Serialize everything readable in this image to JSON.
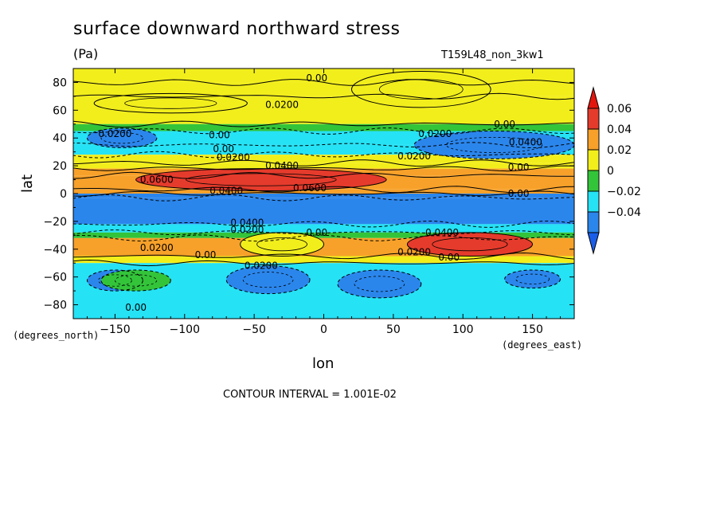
{
  "chart_data": {
    "type": "heatmap",
    "title": "surface downward northward stress",
    "units": "(Pa)",
    "run_id": "T159L48_non_3kw1",
    "xlabel": "lon",
    "ylabel": "lat",
    "x_unit_label": "(degrees_east)",
    "y_unit_label": "(degrees_north)",
    "xlim": [
      -180,
      180
    ],
    "ylim": [
      -90,
      90
    ],
    "xticks": [
      -150,
      -100,
      -50,
      0,
      50,
      100,
      150
    ],
    "yticks": [
      -80,
      -60,
      -40,
      -20,
      0,
      20,
      40,
      60,
      80
    ],
    "contour_interval_text": "CONTOUR INTERVAL = 1.001E-02",
    "colorbar": {
      "labels": [
        "0.06",
        "0.04",
        "0.02",
        "0",
        "−0.02",
        "−0.04"
      ],
      "bins": [
        {
          "range": [
            0.04,
            0.06
          ],
          "color": "#e53b2c"
        },
        {
          "range": [
            0.02,
            0.04
          ],
          "color": "#f7a12a"
        },
        {
          "range": [
            0.0,
            0.02
          ],
          "color": "#f2ee1c"
        },
        {
          "range": [
            -0.02,
            0.0
          ],
          "color": "#33c43a"
        },
        {
          "range": [
            -0.04,
            -0.02
          ],
          "color": "#26e2f5"
        },
        {
          "range": [
            -0.06,
            -0.04
          ],
          "color": "#2b86ec"
        }
      ],
      "over_color": "#e3160e",
      "under_color": "#1a5de8"
    },
    "zonal_bands": [
      {
        "lat": [
          80,
          90
        ],
        "value": 0.0
      },
      {
        "lat": [
          70,
          80
        ],
        "value": 0.0
      },
      {
        "lat": [
          50,
          70
        ],
        "value": 0.01
      },
      {
        "lat": [
          45,
          50
        ],
        "value": -0.01
      },
      {
        "lat": [
          35,
          45
        ],
        "value": -0.03
      },
      {
        "lat": [
          28,
          35
        ],
        "value": -0.03
      },
      {
        "lat": [
          22,
          28
        ],
        "value": 0.01
      },
      {
        "lat": [
          18,
          22
        ],
        "value": 0.01
      },
      {
        "lat": [
          13,
          18
        ],
        "value": 0.03
      },
      {
        "lat": [
          3,
          13
        ],
        "value": 0.03
      },
      {
        "lat": [
          0,
          3
        ],
        "value": 0.03
      },
      {
        "lat": [
          -3,
          0
        ],
        "value": -0.05
      },
      {
        "lat": [
          -22,
          -3
        ],
        "value": -0.05
      },
      {
        "lat": [
          -28,
          -22
        ],
        "value": -0.03
      },
      {
        "lat": [
          -32,
          -28
        ],
        "value": -0.01
      },
      {
        "lat": [
          -45,
          -32
        ],
        "value": 0.03
      },
      {
        "lat": [
          -50,
          -45
        ],
        "value": 0.01
      },
      {
        "lat": [
          -90,
          -50
        ],
        "value": -0.03
      }
    ],
    "features": [
      {
        "lon_range": [
          -135,
          45
        ],
        "lat_range": [
          2,
          18
        ],
        "value": 0.05
      },
      {
        "lon_range": [
          20,
          120
        ],
        "lat_range": [
          62,
          88
        ],
        "value": 0.01
      },
      {
        "lon_range": [
          -165,
          -55
        ],
        "lat_range": [
          58,
          72
        ],
        "value": 0.01
      },
      {
        "lon_range": [
          -170,
          -120
        ],
        "lat_range": [
          33,
          47
        ],
        "value": -0.05
      },
      {
        "lon_range": [
          65,
          180
        ],
        "lat_range": [
          25,
          45
        ],
        "value": -0.05
      },
      {
        "lon_range": [
          -60,
          0
        ],
        "lat_range": [
          -45,
          -28
        ],
        "value": 0.01
      },
      {
        "lon_range": [
          60,
          150
        ],
        "lat_range": [
          -45,
          -28
        ],
        "value": 0.05
      },
      {
        "lon_range": [
          -170,
          -130
        ],
        "lat_range": [
          -70,
          -55
        ],
        "value": -0.05
      },
      {
        "lon_range": [
          -70,
          -10
        ],
        "lat_range": [
          -72,
          -52
        ],
        "value": -0.05
      },
      {
        "lon_range": [
          10,
          70
        ],
        "lat_range": [
          -75,
          -55
        ],
        "value": -0.05
      },
      {
        "lon_range": [
          130,
          170
        ],
        "lat_range": [
          -68,
          -55
        ],
        "value": -0.05
      },
      {
        "lon_range": [
          -160,
          -110
        ],
        "lat_range": [
          -70,
          -55
        ],
        "value": -0.01
      }
    ],
    "contour_labels": [
      {
        "text": "0.00",
        "lon": -5,
        "lat": 83
      },
      {
        "text": "0.0200",
        "lon": -30,
        "lat": 64
      },
      {
        "text": "0.0200",
        "lon": -150,
        "lat": 43
      },
      {
        "text": "0.00",
        "lon": -75,
        "lat": 42
      },
      {
        "text": "0.00",
        "lon": -72,
        "lat": 32
      },
      {
        "text": "0.0200",
        "lon": -65,
        "lat": 26
      },
      {
        "text": "0.0400",
        "lon": -30,
        "lat": 20
      },
      {
        "text": "0.0600",
        "lon": -120,
        "lat": 10
      },
      {
        "text": "0.0400",
        "lon": -70,
        "lat": 2
      },
      {
        "text": "0.0600",
        "lon": -10,
        "lat": 4
      },
      {
        "text": "0.0200",
        "lon": 80,
        "lat": 43
      },
      {
        "text": "0.00",
        "lon": 130,
        "lat": 50
      },
      {
        "text": "0.0400",
        "lon": 145,
        "lat": 37
      },
      {
        "text": "0.0200",
        "lon": 65,
        "lat": 27
      },
      {
        "text": "0.00",
        "lon": 140,
        "lat": 19
      },
      {
        "text": "0.00",
        "lon": 140,
        "lat": 0
      },
      {
        "text": "0.0400",
        "lon": -55,
        "lat": -21
      },
      {
        "text": "0.0200",
        "lon": -55,
        "lat": -26
      },
      {
        "text": "0.00",
        "lon": -5,
        "lat": -28
      },
      {
        "text": "0.0400",
        "lon": 85,
        "lat": -28
      },
      {
        "text": "0.0200",
        "lon": -120,
        "lat": -39
      },
      {
        "text": "0.00",
        "lon": -85,
        "lat": -44
      },
      {
        "text": "0.0200",
        "lon": 65,
        "lat": -42
      },
      {
        "text": "0.00",
        "lon": 90,
        "lat": -46
      },
      {
        "text": "0.0200",
        "lon": -45,
        "lat": -52
      },
      {
        "text": "0.00",
        "lon": -135,
        "lat": -82
      }
    ]
  }
}
